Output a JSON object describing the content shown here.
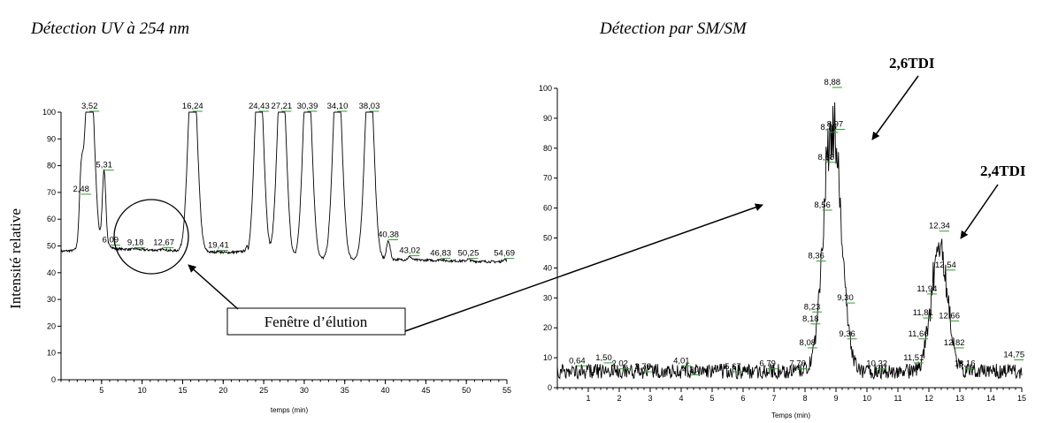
{
  "figure": {
    "left_title": "Détection UV à 254 nm",
    "right_title": "Détection par SM/SM",
    "y_axis_label": "Intensité relative",
    "window_label": "Fenêtre d’élution",
    "peak_2_6": "2,6TDI",
    "peak_2_4": "2,4TDI"
  },
  "chart_data": [
    {
      "type": "line",
      "title": "Détection UV à 254 nm",
      "xlabel": "temps (min)",
      "ylabel": "Intensité relative",
      "xlim": [
        0,
        55
      ],
      "ylim": [
        0,
        100
      ],
      "xticks": [
        5,
        10,
        15,
        20,
        25,
        30,
        35,
        40,
        45,
        50,
        55
      ],
      "yticks": [
        0,
        10,
        20,
        30,
        40,
        50,
        60,
        70,
        80,
        90,
        100
      ],
      "baseline": [
        [
          0,
          48
        ],
        [
          5.8,
          49
        ],
        [
          16,
          48
        ],
        [
          20.5,
          47.5
        ],
        [
          23,
          48
        ],
        [
          23.1,
          45
        ],
        [
          40,
          45
        ],
        [
          55,
          44
        ]
      ],
      "peaks": [
        {
          "label": "2,48",
          "x": 2.48,
          "y": 69
        },
        {
          "label": "3,52",
          "x": 3.52,
          "y": 100
        },
        {
          "label": "5,31",
          "x": 5.31,
          "y": 78
        },
        {
          "label": "6,09",
          "x": 6.09,
          "y": 50
        },
        {
          "label": "9,18",
          "x": 9.18,
          "y": 49
        },
        {
          "label": "12,67",
          "x": 12.67,
          "y": 49
        },
        {
          "label": "16,24",
          "x": 16.24,
          "y": 100
        },
        {
          "label": "19,41",
          "x": 19.41,
          "y": 48
        },
        {
          "label": "24,43",
          "x": 24.43,
          "y": 100
        },
        {
          "label": "27,21",
          "x": 27.21,
          "y": 100
        },
        {
          "label": "30,39",
          "x": 30.39,
          "y": 100
        },
        {
          "label": "34,10",
          "x": 34.1,
          "y": 100
        },
        {
          "label": "38,03",
          "x": 38.03,
          "y": 100
        },
        {
          "label": "40,38",
          "x": 40.38,
          "y": 52
        },
        {
          "label": "43,02",
          "x": 43.02,
          "y": 46
        },
        {
          "label": "46,83",
          "x": 46.83,
          "y": 45
        },
        {
          "label": "50,25",
          "x": 50.25,
          "y": 45
        },
        {
          "label": "54,69",
          "x": 54.69,
          "y": 45
        }
      ]
    },
    {
      "type": "line",
      "title": "Détection par SM/SM",
      "xlabel": "Temps (min)",
      "ylabel": "",
      "xlim": [
        0,
        15
      ],
      "ylim": [
        0,
        100
      ],
      "xticks": [
        1,
        2,
        3,
        4,
        5,
        6,
        7,
        8,
        9,
        10,
        11,
        12,
        13,
        14,
        15
      ],
      "yticks": [
        0,
        10,
        20,
        30,
        40,
        50,
        60,
        70,
        80,
        90,
        100
      ],
      "peaks": [
        {
          "label": "0,64",
          "x": 0.64,
          "y": 7
        },
        {
          "label": "1,50",
          "x": 1.5,
          "y": 8
        },
        {
          "label": "2,02",
          "x": 2.02,
          "y": 6
        },
        {
          "label": "2,76",
          "x": 2.76,
          "y": 5
        },
        {
          "label": "4,01",
          "x": 4.01,
          "y": 7
        },
        {
          "label": "4,30",
          "x": 4.3,
          "y": 4
        },
        {
          "label": "5,67",
          "x": 5.67,
          "y": 5
        },
        {
          "label": "6,79",
          "x": 6.79,
          "y": 6
        },
        {
          "label": "7,76",
          "x": 7.76,
          "y": 6
        },
        {
          "label": "8,08",
          "x": 8.08,
          "y": 13
        },
        {
          "label": "8,18",
          "x": 8.18,
          "y": 21
        },
        {
          "label": "8,23",
          "x": 8.23,
          "y": 25
        },
        {
          "label": "8,36",
          "x": 8.36,
          "y": 42
        },
        {
          "label": "8,56",
          "x": 8.56,
          "y": 59
        },
        {
          "label": "8,68",
          "x": 8.68,
          "y": 75
        },
        {
          "label": "8,76",
          "x": 8.76,
          "y": 85
        },
        {
          "label": "8,88",
          "x": 8.88,
          "y": 100
        },
        {
          "label": "8,97",
          "x": 8.97,
          "y": 86
        },
        {
          "label": "9,30",
          "x": 9.3,
          "y": 28
        },
        {
          "label": "9,36",
          "x": 9.36,
          "y": 16
        },
        {
          "label": "10,32",
          "x": 10.32,
          "y": 6
        },
        {
          "label": "11,51",
          "x": 11.51,
          "y": 8
        },
        {
          "label": "11,66",
          "x": 11.66,
          "y": 16
        },
        {
          "label": "11,81",
          "x": 11.81,
          "y": 23
        },
        {
          "label": "11,94",
          "x": 11.94,
          "y": 31
        },
        {
          "label": "12,34",
          "x": 12.34,
          "y": 52
        },
        {
          "label": "12,54",
          "x": 12.54,
          "y": 39
        },
        {
          "label": "12,66",
          "x": 12.66,
          "y": 22
        },
        {
          "label": "12,82",
          "x": 12.82,
          "y": 13
        },
        {
          "label": "13,16",
          "x": 13.16,
          "y": 6
        },
        {
          "label": "14,75",
          "x": 14.75,
          "y": 9
        }
      ]
    }
  ]
}
